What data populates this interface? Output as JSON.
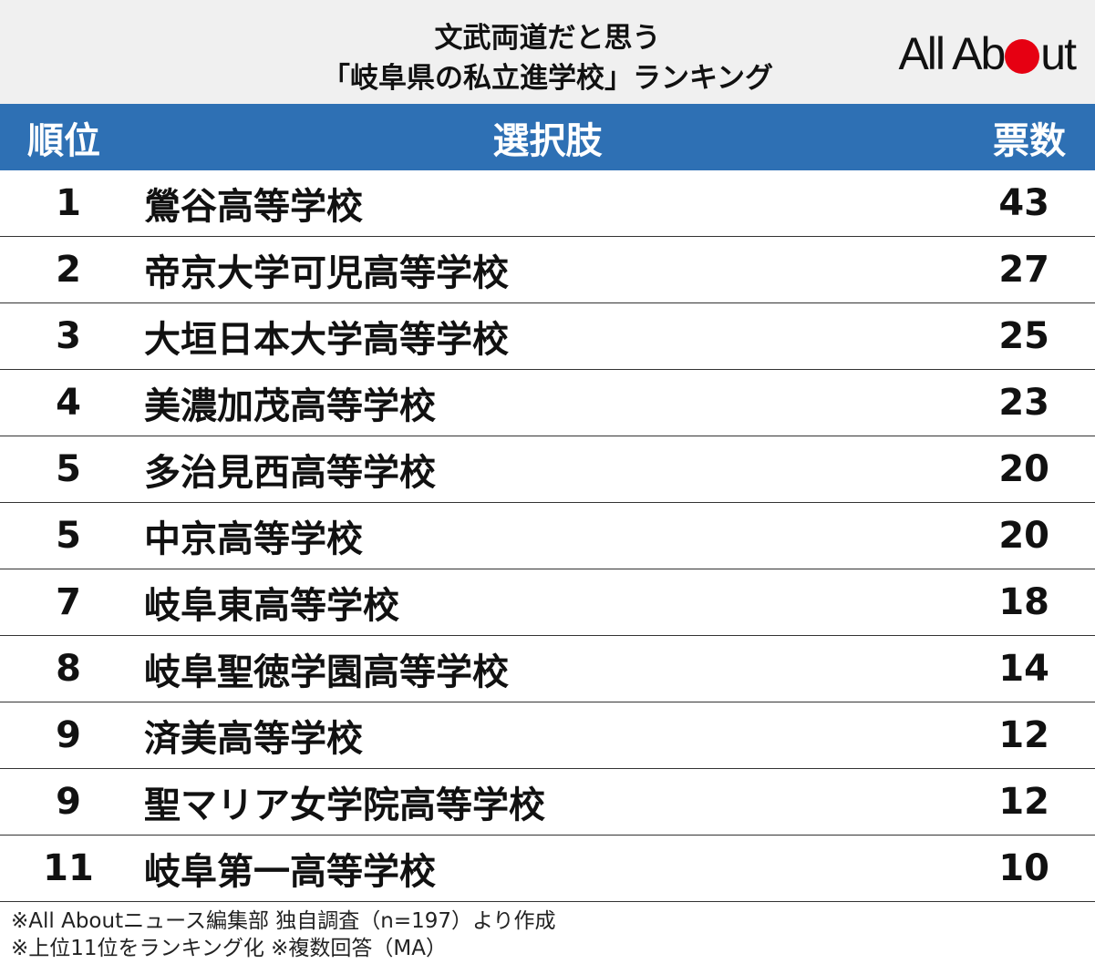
{
  "header": {
    "title_line1": "文武両道だと思う",
    "title_line2": "「岐阜県の私立進学校」ランキング",
    "logo_text_left": "All Ab",
    "logo_text_right": "ut",
    "logo_dot_color": "#e60012"
  },
  "colors": {
    "header_blue": "#2e70b4",
    "band_gray": "#f0f0f0"
  },
  "columns": {
    "rank": "順位",
    "choice": "選択肢",
    "votes": "票数"
  },
  "chart_data": {
    "type": "table",
    "columns": [
      "順位",
      "選択肢",
      "票数"
    ],
    "rows": [
      {
        "rank": "1",
        "name": "鶯谷高等学校",
        "votes": "43"
      },
      {
        "rank": "2",
        "name": "帝京大学可児高等学校",
        "votes": "27"
      },
      {
        "rank": "3",
        "name": "大垣日本大学高等学校",
        "votes": "25"
      },
      {
        "rank": "4",
        "name": "美濃加茂高等学校",
        "votes": "23"
      },
      {
        "rank": "5",
        "name": "多治見西高等学校",
        "votes": "20"
      },
      {
        "rank": "5",
        "name": "中京高等学校",
        "votes": "20"
      },
      {
        "rank": "7",
        "name": "岐阜東高等学校",
        "votes": "18"
      },
      {
        "rank": "8",
        "name": "岐阜聖徳学園高等学校",
        "votes": "14"
      },
      {
        "rank": "9",
        "name": "済美高等学校",
        "votes": "12"
      },
      {
        "rank": "9",
        "name": "聖マリア女学院高等学校",
        "votes": "12"
      },
      {
        "rank": "11",
        "name": "岐阜第一高等学校",
        "votes": "10"
      }
    ]
  },
  "notes": {
    "line1": "※All Aboutニュース編集部 独自調査（n=197）より作成",
    "line2": "※上位11位をランキング化 ※複数回答（MA）"
  }
}
